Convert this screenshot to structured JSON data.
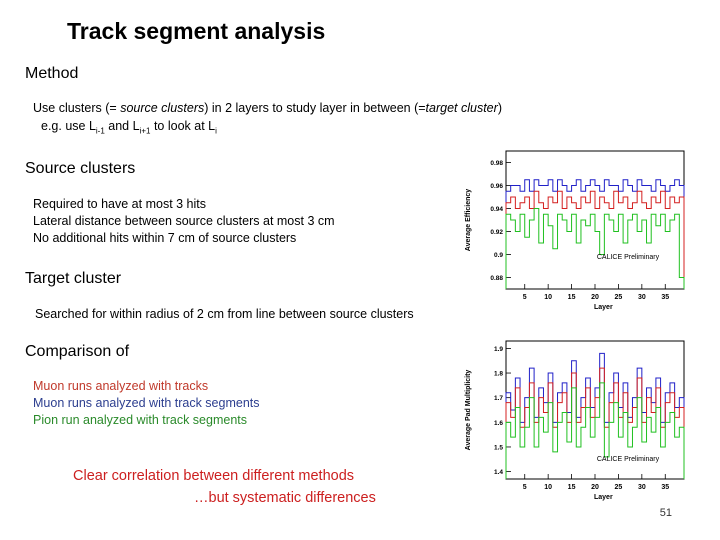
{
  "slide": {
    "title": "Track segment analysis",
    "page_number": "51",
    "method": {
      "heading": "Method",
      "line1_a": "Use clusters (= ",
      "line1_b": "source clusters",
      "line1_c": ") in 2 layers to study layer in between (=",
      "line1_d": "target cluster",
      "line1_e": ")",
      "line2_a": "e.g. use L",
      "line2_sub1": "i-1",
      "line2_b": " and L",
      "line2_sub2": "i+1",
      "line2_c": " to look at L",
      "line2_sub3": "i"
    },
    "source": {
      "heading": "Source clusters",
      "lines": [
        "Required to have at most 3 hits",
        "Lateral distance between source clusters at most 3 cm",
        "No additional hits within 7 cm of source clusters"
      ]
    },
    "target": {
      "heading": "Target cluster",
      "line": "Searched for within radius of 2 cm from line between source clusters"
    },
    "comparison": {
      "heading": "Comparison of",
      "items": [
        "Muon runs analyzed with tracks",
        "Muon runs analyzed with track segments",
        "Pion run analyzed with track segments"
      ]
    },
    "conclusion": {
      "line1": "Clear correlation between different methods",
      "line2": "…but systematic differences"
    }
  },
  "colors": {
    "muon_tracks": "#d42020",
    "muon_segments": "#2020c8",
    "pion_segments": "#20c020"
  },
  "chart_data": [
    {
      "type": "line",
      "xlabel": "Layer",
      "ylabel": "Average Efficiency",
      "annotation": "CALICE Preliminary",
      "xlim": [
        1,
        39
      ],
      "ylim": [
        0.87,
        0.99
      ],
      "x_ticks": [
        "5",
        "10",
        "15",
        "20",
        "25",
        "30",
        "35"
      ],
      "y_ticks": [
        "0.88",
        "0.9",
        "0.92",
        "0.94",
        "0.96",
        "0.98"
      ],
      "series": [
        {
          "color_key": "muon_segments",
          "values": [
            0.955,
            0.96,
            0.96,
            0.955,
            0.965,
            0.955,
            0.965,
            0.96,
            0.96,
            0.965,
            0.955,
            0.965,
            0.96,
            0.955,
            0.96,
            0.965,
            0.955,
            0.96,
            0.965,
            0.96,
            0.955,
            0.965,
            0.96,
            0.96,
            0.955,
            0.965,
            0.96,
            0.955,
            0.965,
            0.96,
            0.96,
            0.955,
            0.965,
            0.96,
            0.955,
            0.96,
            0.965,
            0.96
          ]
        },
        {
          "color_key": "muon_tracks",
          "values": [
            0.945,
            0.95,
            0.94,
            0.945,
            0.95,
            0.94,
            0.955,
            0.945,
            0.94,
            0.95,
            0.945,
            0.955,
            0.94,
            0.95,
            0.945,
            0.94,
            0.95,
            0.945,
            0.955,
            0.94,
            0.95,
            0.945,
            0.94,
            0.955,
            0.945,
            0.95,
            0.94,
            0.945,
            0.955,
            0.945,
            0.94,
            0.95,
            0.945,
            0.955,
            0.94,
            0.95,
            0.945,
            0.95
          ]
        },
        {
          "color_key": "pion_segments",
          "values": [
            0.935,
            0.93,
            0.92,
            0.935,
            0.915,
            0.93,
            0.94,
            0.91,
            0.935,
            0.925,
            0.905,
            0.935,
            0.93,
            0.92,
            0.935,
            0.91,
            0.93,
            0.925,
            0.935,
            0.92,
            0.9,
            0.935,
            0.93,
            0.92,
            0.935,
            0.91,
            0.93,
            0.935,
            0.92,
            0.93,
            0.91,
            0.935,
            0.925,
            0.935,
            0.92,
            0.93,
            0.935,
            0.88
          ]
        }
      ]
    },
    {
      "type": "line",
      "xlabel": "Layer",
      "ylabel": "Average Pad Multiplicity",
      "annotation": "CALICE Preliminary",
      "xlim": [
        1,
        39
      ],
      "ylim": [
        1.37,
        1.93
      ],
      "x_ticks": [
        "5",
        "10",
        "15",
        "20",
        "25",
        "30",
        "35"
      ],
      "y_ticks": [
        "1.4",
        "1.5",
        "1.6",
        "1.7",
        "1.8",
        "1.9"
      ],
      "series": [
        {
          "color_key": "muon_segments",
          "values": [
            1.72,
            1.65,
            1.78,
            1.6,
            1.7,
            1.82,
            1.62,
            1.74,
            1.68,
            1.8,
            1.6,
            1.72,
            1.76,
            1.64,
            1.85,
            1.62,
            1.7,
            1.78,
            1.66,
            1.74,
            1.88,
            1.6,
            1.72,
            1.8,
            1.66,
            1.76,
            1.62,
            1.7,
            1.82,
            1.64,
            1.74,
            1.68,
            1.78,
            1.6,
            1.72,
            1.76,
            1.66,
            1.7
          ]
        },
        {
          "color_key": "muon_tracks",
          "values": [
            1.68,
            1.62,
            1.74,
            1.58,
            1.66,
            1.76,
            1.6,
            1.7,
            1.64,
            1.76,
            1.58,
            1.68,
            1.72,
            1.6,
            1.8,
            1.6,
            1.66,
            1.74,
            1.62,
            1.7,
            1.82,
            1.58,
            1.68,
            1.76,
            1.62,
            1.72,
            1.6,
            1.66,
            1.78,
            1.6,
            1.7,
            1.64,
            1.74,
            1.58,
            1.68,
            1.72,
            1.62,
            1.66
          ]
        },
        {
          "color_key": "pion_segments",
          "values": [
            1.6,
            1.54,
            1.66,
            1.5,
            1.58,
            1.7,
            1.5,
            1.62,
            1.56,
            1.68,
            1.48,
            1.6,
            1.64,
            1.52,
            1.74,
            1.5,
            1.58,
            1.66,
            1.54,
            1.62,
            1.76,
            1.46,
            1.6,
            1.68,
            1.54,
            1.64,
            1.5,
            1.58,
            1.7,
            1.52,
            1.62,
            1.56,
            1.66,
            1.5,
            1.6,
            1.64,
            1.54,
            1.58
          ]
        }
      ]
    }
  ]
}
